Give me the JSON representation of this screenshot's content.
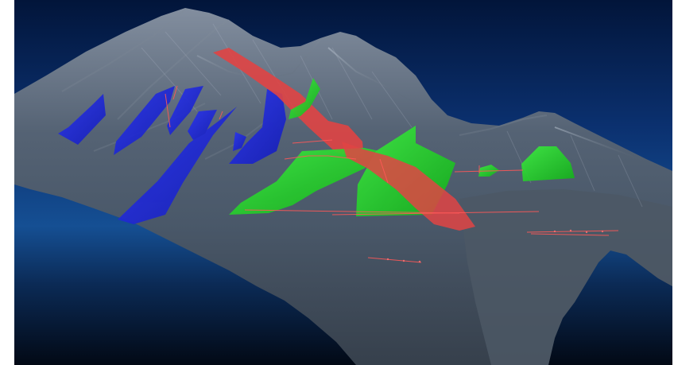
{
  "scene": {
    "view": "3d-geological-model",
    "layers": [
      {
        "name": "terrain-surface",
        "color": "#4f5a67",
        "style": "translucent-mesh"
      },
      {
        "name": "blue-vein-bodies",
        "color": "#1f2ad9"
      },
      {
        "name": "green-ore-bodies",
        "color": "#25e02a"
      },
      {
        "name": "red-fault-plane",
        "color": "#e04040"
      },
      {
        "name": "drillhole-traces",
        "color": "#ff5555"
      }
    ],
    "colors": {
      "sky_top": "#02153a",
      "sky_mid": "#0c3777",
      "sky_horizon": "#154f93",
      "ground_dark": "#020915",
      "terrain_light": "#9ea9b7",
      "terrain_dark": "#3f4a57",
      "canvas_margin": "#ffffff"
    }
  }
}
